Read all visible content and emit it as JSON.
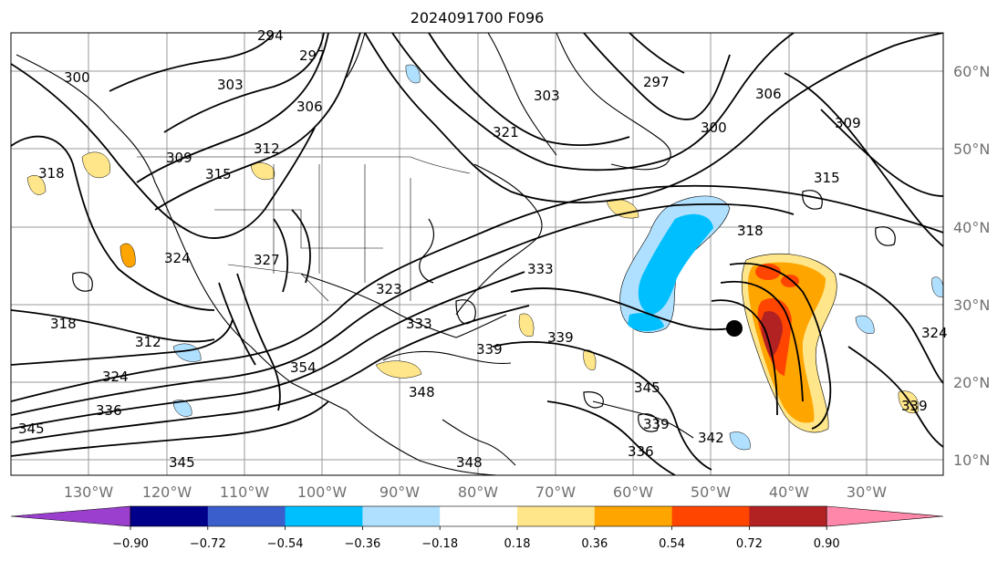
{
  "title": "2024091700 F096",
  "latitude_labels": [
    "60°N",
    "50°N",
    "40°N",
    "30°N",
    "20°N",
    "10°N"
  ],
  "longitude_labels": [
    "130°W",
    "120°W",
    "110°W",
    "100°W",
    "90°W",
    "80°W",
    "70°W",
    "60°W",
    "50°W",
    "40°W",
    "30°W"
  ],
  "contour_labels": [
    "294",
    "297",
    "300",
    "303",
    "306",
    "309",
    "312",
    "315",
    "318",
    "321",
    "324",
    "333",
    "336",
    "339",
    "342",
    "345",
    "348",
    "354",
    "323",
    "327"
  ],
  "colorbar": {
    "tick_labels": [
      "−0.90",
      "−0.72",
      "−0.54",
      "−0.36",
      "−0.18",
      "0.18",
      "0.36",
      "0.54",
      "0.72",
      "0.90"
    ],
    "colors": [
      "#9b3fcf",
      "#00008b",
      "#3a5fcd",
      "#00bfff",
      "#b0e0ff",
      "#ffffff",
      "#ffe68a",
      "#ffa500",
      "#ff4500",
      "#b22222",
      "#ff88aa"
    ]
  }
}
